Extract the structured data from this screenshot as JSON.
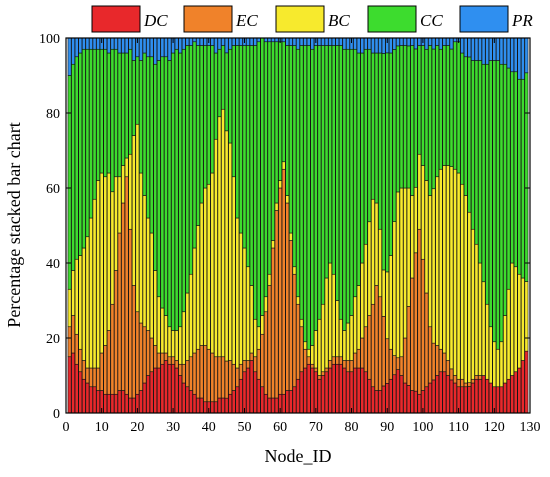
{
  "chart_data": {
    "type": "bar",
    "stacked": "percent",
    "title": "",
    "xlabel": "Node_ID",
    "ylabel": "Percentage stacked bar chart",
    "xlim": [
      0,
      130
    ],
    "ylim": [
      0,
      100
    ],
    "xticks": [
      0,
      10,
      20,
      30,
      40,
      50,
      60,
      70,
      80,
      90,
      100,
      110,
      120,
      130
    ],
    "yticks": [
      0,
      20,
      40,
      60,
      80,
      100
    ],
    "legend_position": "top",
    "x": [
      1,
      2,
      3,
      4,
      5,
      6,
      7,
      8,
      9,
      10,
      11,
      12,
      13,
      14,
      15,
      16,
      17,
      18,
      19,
      20,
      21,
      22,
      23,
      24,
      25,
      26,
      27,
      28,
      29,
      30,
      31,
      32,
      33,
      34,
      35,
      36,
      37,
      38,
      39,
      40,
      41,
      42,
      43,
      44,
      45,
      46,
      47,
      48,
      49,
      50,
      51,
      52,
      53,
      54,
      55,
      56,
      57,
      58,
      59,
      60,
      61,
      62,
      63,
      64,
      65,
      66,
      67,
      68,
      69,
      70,
      71,
      72,
      73,
      74,
      75,
      76,
      77,
      78,
      79,
      80,
      81,
      82,
      83,
      84,
      85,
      86,
      87,
      88,
      89,
      90,
      91,
      92,
      93,
      94,
      95,
      96,
      97,
      98,
      99,
      100,
      101,
      102,
      103,
      104,
      105,
      106,
      107,
      108,
      109,
      110,
      111,
      112,
      113,
      114,
      115,
      116,
      117,
      118,
      119,
      120,
      121,
      122,
      123,
      124,
      125,
      126,
      127,
      128,
      129
    ],
    "series": [
      {
        "name": "DC",
        "color": "#e8282b",
        "values": [
          15,
          16,
          13,
          11,
          9,
          8,
          7,
          7,
          6,
          6,
          5,
          5,
          5,
          5,
          6,
          6,
          5,
          4,
          4,
          5,
          6,
          8,
          10,
          11,
          12,
          12,
          13,
          14,
          13,
          13,
          12,
          10,
          8,
          7,
          6,
          5,
          4,
          4,
          3,
          3,
          3,
          3,
          4,
          4,
          4,
          5,
          6,
          7,
          9,
          11,
          12,
          14,
          11,
          9,
          7,
          5,
          4,
          4,
          4,
          5,
          5,
          6,
          6,
          7,
          9,
          11,
          12,
          13,
          12,
          11,
          9,
          10,
          11,
          12,
          13,
          13,
          13,
          12,
          11,
          11,
          12,
          12,
          12,
          11,
          9,
          7,
          6,
          6,
          7,
          8,
          9,
          10,
          11,
          10,
          8,
          7,
          6,
          6,
          5,
          6,
          7,
          8,
          9,
          10,
          11,
          11,
          10,
          9,
          8,
          7,
          7,
          7,
          7,
          8,
          9,
          9,
          10,
          9,
          8,
          7,
          7,
          7,
          8,
          9,
          10,
          11,
          12,
          14,
          16
        ]
      },
      {
        "name": "EC",
        "color": "#f0822a",
        "values": [
          8,
          10,
          8,
          6,
          5,
          4,
          5,
          5,
          6,
          10,
          13,
          17,
          24,
          33,
          42,
          50,
          58,
          45,
          30,
          22,
          18,
          15,
          12,
          9,
          6,
          4,
          3,
          2,
          2,
          2,
          2,
          3,
          5,
          7,
          9,
          11,
          13,
          14,
          15,
          14,
          13,
          12,
          11,
          11,
          10,
          9,
          7,
          5,
          4,
          3,
          2,
          2,
          4,
          8,
          14,
          22,
          30,
          40,
          50,
          55,
          60,
          50,
          40,
          30,
          20,
          12,
          5,
          2,
          1,
          1,
          1,
          1,
          1,
          2,
          2,
          2,
          2,
          2,
          3,
          3,
          4,
          5,
          8,
          12,
          17,
          22,
          28,
          25,
          18,
          12,
          8,
          5,
          3,
          5,
          12,
          20,
          30,
          38,
          44,
          35,
          25,
          15,
          10,
          8,
          6,
          5,
          4,
          3,
          2,
          2,
          2,
          1,
          1,
          1,
          1,
          1,
          0,
          0,
          0,
          0,
          0,
          0,
          0,
          0,
          0,
          0,
          0,
          0,
          0
        ]
      },
      {
        "name": "BC",
        "color": "#f7ea2d",
        "values": [
          10,
          12,
          20,
          25,
          30,
          35,
          40,
          45,
          50,
          48,
          45,
          42,
          30,
          25,
          15,
          10,
          5,
          20,
          40,
          50,
          40,
          35,
          30,
          28,
          20,
          15,
          12,
          10,
          8,
          7,
          8,
          10,
          14,
          18,
          22,
          28,
          33,
          38,
          42,
          44,
          48,
          58,
          64,
          66,
          62,
          58,
          50,
          40,
          35,
          30,
          25,
          18,
          10,
          6,
          5,
          4,
          3,
          2,
          2,
          2,
          2,
          2,
          2,
          2,
          2,
          2,
          2,
          2,
          5,
          10,
          15,
          18,
          24,
          26,
          22,
          15,
          10,
          8,
          10,
          12,
          15,
          17,
          20,
          22,
          25,
          28,
          22,
          18,
          12,
          18,
          25,
          35,
          42,
          45,
          40,
          30,
          22,
          18,
          20,
          25,
          30,
          35,
          42,
          45,
          48,
          50,
          52,
          55,
          55,
          55,
          52,
          50,
          45,
          40,
          35,
          30,
          25,
          20,
          15,
          12,
          10,
          12,
          18,
          24,
          30,
          28,
          25,
          22,
          18
        ]
      },
      {
        "name": "CC",
        "color": "#3ddc2e",
        "values": [
          57,
          55,
          54,
          54,
          53,
          50,
          45,
          40,
          35,
          33,
          34,
          32,
          38,
          34,
          33,
          30,
          28,
          28,
          20,
          18,
          30,
          38,
          43,
          47,
          55,
          63,
          67,
          69,
          71,
          74,
          75,
          73,
          70,
          66,
          61,
          55,
          48,
          42,
          38,
          37,
          34,
          23,
          18,
          17,
          21,
          25,
          35,
          46,
          50,
          54,
          59,
          64,
          73,
          76,
          74,
          68,
          62,
          53,
          43,
          37,
          32,
          40,
          50,
          59,
          66,
          73,
          79,
          81,
          79,
          76,
          73,
          69,
          62,
          58,
          61,
          68,
          73,
          75,
          73,
          71,
          66,
          62,
          56,
          52,
          46,
          39,
          40,
          47,
          56,
          59,
          54,
          45,
          37,
          38,
          38,
          36,
          40,
          38,
          29,
          32,
          35,
          40,
          38,
          35,
          32,
          32,
          32,
          32,
          34,
          35,
          35,
          37,
          41,
          45,
          49,
          54,
          58,
          64,
          71,
          75,
          77,
          74,
          67,
          59,
          51,
          52,
          52,
          53,
          54
        ]
      },
      {
        "name": "PR",
        "color": "#2f8ff0",
        "values": [
          10,
          7,
          5,
          4,
          3,
          3,
          3,
          3,
          3,
          3,
          3,
          4,
          3,
          3,
          4,
          4,
          4,
          3,
          6,
          5,
          6,
          4,
          5,
          5,
          7,
          6,
          5,
          5,
          6,
          4,
          3,
          4,
          3,
          2,
          2,
          1,
          2,
          2,
          2,
          2,
          2,
          4,
          3,
          2,
          4,
          3,
          2,
          2,
          2,
          2,
          2,
          2,
          2,
          1,
          0,
          1,
          1,
          1,
          1,
          1,
          1,
          2,
          2,
          2,
          3,
          2,
          2,
          2,
          3,
          2,
          2,
          2,
          2,
          2,
          2,
          2,
          2,
          3,
          3,
          3,
          3,
          4,
          4,
          3,
          3,
          4,
          4,
          4,
          4,
          4,
          4,
          3,
          2,
          2,
          2,
          2,
          2,
          3,
          2,
          2,
          3,
          2,
          3,
          2,
          3,
          2,
          2,
          3,
          1,
          1,
          4,
          5,
          5,
          6,
          6,
          6,
          7,
          7,
          6,
          6,
          6,
          7,
          7,
          8,
          9,
          9,
          11,
          11,
          9
        ]
      }
    ]
  }
}
